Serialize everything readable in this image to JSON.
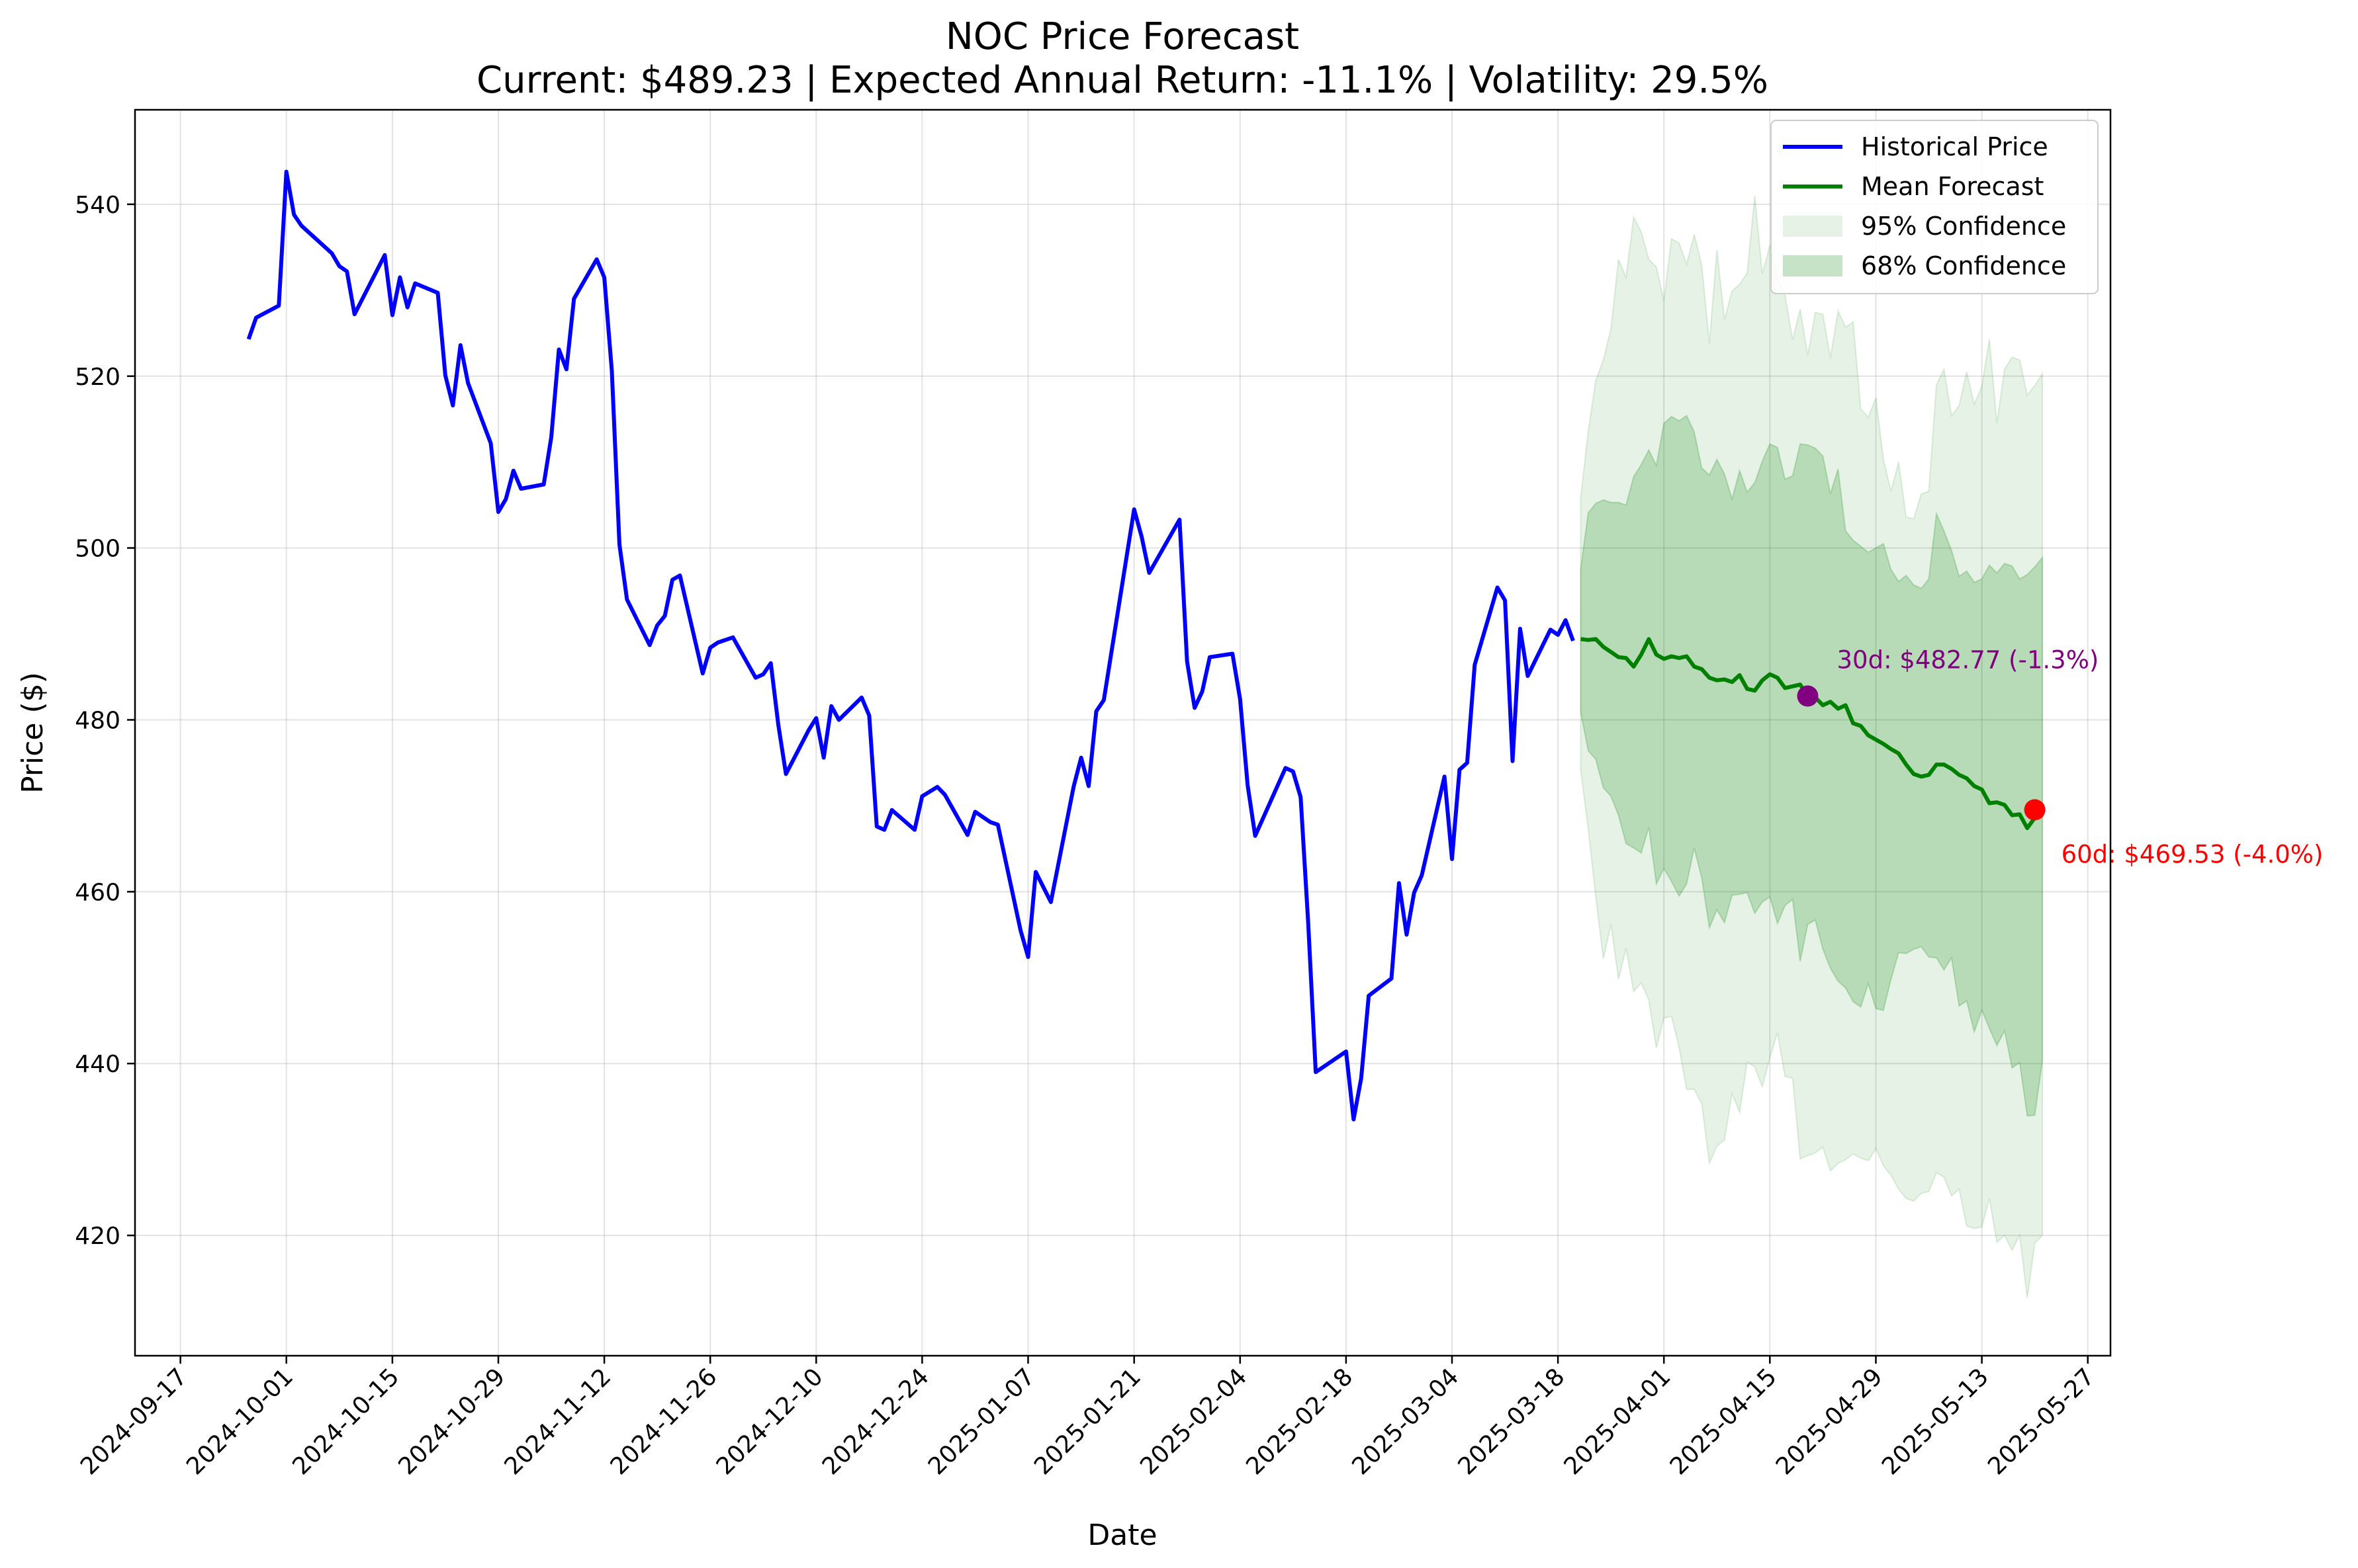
{
  "chart_data": {
    "type": "line",
    "title": "NOC Price Forecast",
    "subtitle": "Current: $489.23 | Expected Annual Return: -11.1% | Volatility: 29.5%",
    "xlabel": "Date",
    "ylabel": "Price ($)",
    "xlim": [
      "2024-09-11",
      "2025-05-30"
    ],
    "ylim": [
      406,
      551
    ],
    "x_ticks": [
      "2024-09-17",
      "2024-10-01",
      "2024-10-15",
      "2024-10-29",
      "2024-11-12",
      "2024-11-26",
      "2024-12-10",
      "2024-12-24",
      "2025-01-07",
      "2025-01-21",
      "2025-02-04",
      "2025-02-18",
      "2025-03-04",
      "2025-03-18",
      "2025-04-01",
      "2025-04-15",
      "2025-04-29",
      "2025-05-13",
      "2025-05-27"
    ],
    "y_ticks": [
      420,
      440,
      460,
      480,
      500,
      520,
      540
    ],
    "grid": true,
    "legend_position": "top-right",
    "legend": [
      "Historical Price",
      "Mean Forecast",
      "95% Confidence",
      "68% Confidence"
    ],
    "colors": {
      "historical": "#0000ff",
      "forecast": "#008000",
      "band95": "#008000",
      "band68": "#008000",
      "marker30": "#800080",
      "marker60": "#ff0000"
    },
    "historical": [
      [
        "2024-09-26",
        524.3
      ],
      [
        "2024-09-27",
        526.8
      ],
      [
        "2024-09-30",
        528.2
      ],
      [
        "2024-10-01",
        543.8
      ],
      [
        "2024-10-02",
        538.8
      ],
      [
        "2024-10-03",
        537.5
      ],
      [
        "2024-10-07",
        534.3
      ],
      [
        "2024-10-08",
        532.8
      ],
      [
        "2024-10-09",
        532.2
      ],
      [
        "2024-10-10",
        527.2
      ],
      [
        "2024-10-14",
        534.1
      ],
      [
        "2024-10-15",
        527.1
      ],
      [
        "2024-10-16",
        531.5
      ],
      [
        "2024-10-17",
        528.0
      ],
      [
        "2024-10-18",
        530.8
      ],
      [
        "2024-10-21",
        529.7
      ],
      [
        "2024-10-22",
        520.1
      ],
      [
        "2024-10-23",
        516.6
      ],
      [
        "2024-10-24",
        523.6
      ],
      [
        "2024-10-25",
        519.2
      ],
      [
        "2024-10-28",
        512.2
      ],
      [
        "2024-10-29",
        504.2
      ],
      [
        "2024-10-30",
        505.7
      ],
      [
        "2024-10-31",
        509.0
      ],
      [
        "2024-11-01",
        506.9
      ],
      [
        "2024-11-04",
        507.4
      ],
      [
        "2024-11-05",
        512.9
      ],
      [
        "2024-11-06",
        523.1
      ],
      [
        "2024-11-07",
        520.8
      ],
      [
        "2024-11-08",
        529.0
      ],
      [
        "2024-11-11",
        533.6
      ],
      [
        "2024-11-12",
        531.5
      ],
      [
        "2024-11-13",
        520.6
      ],
      [
        "2024-11-14",
        500.4
      ],
      [
        "2024-11-15",
        494.0
      ],
      [
        "2024-11-18",
        488.7
      ],
      [
        "2024-11-19",
        491.0
      ],
      [
        "2024-11-20",
        492.1
      ],
      [
        "2024-11-21",
        496.3
      ],
      [
        "2024-11-22",
        496.8
      ],
      [
        "2024-11-25",
        485.4
      ],
      [
        "2024-11-26",
        488.4
      ],
      [
        "2024-11-27",
        489.0
      ],
      [
        "2024-11-29",
        489.6
      ],
      [
        "2024-12-02",
        484.9
      ],
      [
        "2024-12-03",
        485.3
      ],
      [
        "2024-12-04",
        486.6
      ],
      [
        "2024-12-05",
        479.4
      ],
      [
        "2024-12-06",
        473.7
      ],
      [
        "2024-12-09",
        478.8
      ],
      [
        "2024-12-10",
        480.2
      ],
      [
        "2024-12-11",
        475.6
      ],
      [
        "2024-12-12",
        481.6
      ],
      [
        "2024-12-13",
        480.0
      ],
      [
        "2024-12-16",
        482.6
      ],
      [
        "2024-12-17",
        480.5
      ],
      [
        "2024-12-18",
        467.6
      ],
      [
        "2024-12-19",
        467.2
      ],
      [
        "2024-12-20",
        469.5
      ],
      [
        "2024-12-23",
        467.2
      ],
      [
        "2024-12-24",
        471.1
      ],
      [
        "2024-12-26",
        472.2
      ],
      [
        "2024-12-27",
        471.3
      ],
      [
        "2024-12-30",
        466.6
      ],
      [
        "2024-12-31",
        469.3
      ],
      [
        "2025-01-02",
        468.1
      ],
      [
        "2025-01-03",
        467.8
      ],
      [
        "2025-01-06",
        455.5
      ],
      [
        "2025-01-07",
        452.4
      ],
      [
        "2025-01-08",
        462.3
      ],
      [
        "2025-01-10",
        458.8
      ],
      [
        "2025-01-13",
        472.2
      ],
      [
        "2025-01-14",
        475.6
      ],
      [
        "2025-01-15",
        472.3
      ],
      [
        "2025-01-16",
        481.0
      ],
      [
        "2025-01-17",
        482.3
      ],
      [
        "2025-01-21",
        504.5
      ],
      [
        "2025-01-22",
        501.3
      ],
      [
        "2025-01-23",
        497.1
      ],
      [
        "2025-01-27",
        503.3
      ],
      [
        "2025-01-28",
        486.8
      ],
      [
        "2025-01-29",
        481.4
      ],
      [
        "2025-01-30",
        483.3
      ],
      [
        "2025-01-31",
        487.3
      ],
      [
        "2025-02-03",
        487.7
      ],
      [
        "2025-02-04",
        482.4
      ],
      [
        "2025-02-05",
        472.4
      ],
      [
        "2025-02-06",
        466.5
      ],
      [
        "2025-02-10",
        474.4
      ],
      [
        "2025-02-11",
        474.0
      ],
      [
        "2025-02-12",
        471.0
      ],
      [
        "2025-02-13",
        456.4
      ],
      [
        "2025-02-14",
        439.0
      ],
      [
        "2025-02-18",
        441.4
      ],
      [
        "2025-02-19",
        433.5
      ],
      [
        "2025-02-20",
        438.3
      ],
      [
        "2025-02-21",
        447.9
      ],
      [
        "2025-02-24",
        449.9
      ],
      [
        "2025-02-25",
        461.0
      ],
      [
        "2025-02-26",
        455.0
      ],
      [
        "2025-02-27",
        459.9
      ],
      [
        "2025-02-28",
        461.9
      ],
      [
        "2025-03-03",
        473.4
      ],
      [
        "2025-03-04",
        463.8
      ],
      [
        "2025-03-05",
        474.2
      ],
      [
        "2025-03-06",
        475.0
      ],
      [
        "2025-03-07",
        486.4
      ],
      [
        "2025-03-10",
        495.4
      ],
      [
        "2025-03-11",
        493.9
      ],
      [
        "2025-03-12",
        475.2
      ],
      [
        "2025-03-13",
        490.6
      ],
      [
        "2025-03-14",
        485.1
      ],
      [
        "2025-03-17",
        490.5
      ],
      [
        "2025-03-18",
        489.9
      ],
      [
        "2025-03-19",
        491.6
      ],
      [
        "2025-03-20",
        489.2
      ]
    ],
    "forecast": {
      "dates_start": "2025-03-21",
      "mean": [
        489.4,
        489.3,
        489.4,
        488.5,
        487.9,
        487.3,
        487.2,
        486.2,
        487.6,
        489.4,
        487.6,
        487.1,
        487.4,
        487.2,
        487.4,
        486.2,
        485.9,
        484.9,
        484.6,
        484.7,
        484.4,
        485.2,
        483.6,
        483.4,
        484.6,
        485.3,
        484.9,
        483.7,
        483.9,
        484.1,
        482.8,
        482.6,
        481.7,
        482.1,
        481.3,
        481.7,
        479.6,
        479.3,
        478.2,
        477.7,
        477.2,
        476.6,
        476.1,
        474.8,
        473.7,
        473.4,
        473.6,
        474.8,
        474.8,
        474.3,
        473.6,
        473.2,
        472.3,
        471.9,
        470.3,
        470.4,
        470.1,
        468.9,
        469.0,
        467.4,
        468.6,
        469.5
      ],
      "upper68": [
        497.6,
        504.1,
        505.2,
        505.6,
        505.3,
        505.3,
        505.0,
        508.3,
        509.7,
        511.4,
        509.6,
        514.5,
        515.3,
        514.8,
        515.4,
        513.5,
        509.3,
        508.5,
        510.3,
        508.6,
        505.7,
        509.0,
        506.5,
        507.6,
        510.1,
        512.1,
        511.7,
        508.0,
        508.4,
        512.1,
        512.0,
        511.6,
        510.7,
        506.3,
        509.2,
        502.0,
        500.9,
        500.2,
        499.5,
        500.0,
        500.5,
        497.5,
        496.1,
        496.8,
        495.7,
        495.3,
        496.4,
        504.0,
        502.0,
        499.7,
        496.7,
        497.3,
        496.0,
        496.4,
        498.0,
        497.1,
        498.2,
        497.9,
        496.4,
        496.9,
        497.8,
        498.9
      ],
      "lower68": [
        480.9,
        476.4,
        475.4,
        472.1,
        471.1,
        468.9,
        465.6,
        465.1,
        464.5,
        467.5,
        460.9,
        462.7,
        461.2,
        459.5,
        460.9,
        465.1,
        461.6,
        455.8,
        457.9,
        456.4,
        459.6,
        459.7,
        459.9,
        457.5,
        458.8,
        459.4,
        456.3,
        458.4,
        459.1,
        451.9,
        456.2,
        456.7,
        453.3,
        451.1,
        449.6,
        448.8,
        447.2,
        446.6,
        449.3,
        446.4,
        446.2,
        449.8,
        452.9,
        452.8,
        453.3,
        453.6,
        452.4,
        452.3,
        450.9,
        452.3,
        446.7,
        447.3,
        443.7,
        446.2,
        444.1,
        442.1,
        443.8,
        439.5,
        440.1,
        433.9,
        434.0,
        440.3
      ],
      "upper95": [
        505.8,
        513.6,
        519.5,
        521.9,
        525.5,
        533.6,
        531.5,
        538.5,
        536.8,
        533.6,
        532.7,
        528.8,
        536.0,
        535.5,
        533.0,
        536.5,
        532.9,
        523.8,
        534.7,
        526.6,
        529.9,
        530.7,
        532.0,
        541.0,
        531.9,
        535.2,
        531.6,
        529.4,
        524.2,
        527.8,
        522.4,
        527.4,
        527.2,
        522.1,
        527.6,
        525.7,
        526.3,
        516.2,
        515.2,
        517.5,
        510.3,
        506.6,
        510.0,
        503.6,
        503.4,
        506.3,
        506.6,
        519.0,
        520.8,
        515.4,
        516.6,
        520.5,
        516.7,
        518.8,
        524.3,
        514.5,
        520.8,
        522.2,
        521.9,
        517.8,
        518.9,
        520.3
      ],
      "lower95": [
        474.2,
        467.3,
        459.4,
        452.2,
        456.2,
        449.8,
        453.4,
        448.4,
        449.4,
        447.4,
        441.8,
        445.3,
        445.5,
        441.9,
        437.0,
        437.0,
        435.3,
        428.4,
        430.4,
        431.1,
        436.5,
        434.3,
        440.2,
        439.6,
        437.3,
        440.7,
        443.6,
        438.5,
        438.3,
        428.9,
        429.3,
        429.6,
        430.3,
        427.5,
        428.4,
        428.8,
        429.5,
        429.0,
        428.7,
        430.1,
        428.1,
        427.0,
        425.4,
        424.3,
        424.0,
        424.9,
        425.1,
        427.3,
        426.8,
        424.6,
        425.4,
        421.1,
        420.8,
        421.0,
        424.3,
        419.2,
        420.0,
        418.3,
        420.0,
        412.7,
        419.1,
        420.0
      ]
    },
    "markers": [
      {
        "x": "2025-04-20",
        "y": 482.77,
        "label": "30d: $482.77 (-1.3%)",
        "color": "#800080"
      },
      {
        "x": "2025-05-20",
        "y": 469.53,
        "label": "60d: $469.53 (-4.0%)",
        "color": "#ff0000"
      }
    ]
  }
}
